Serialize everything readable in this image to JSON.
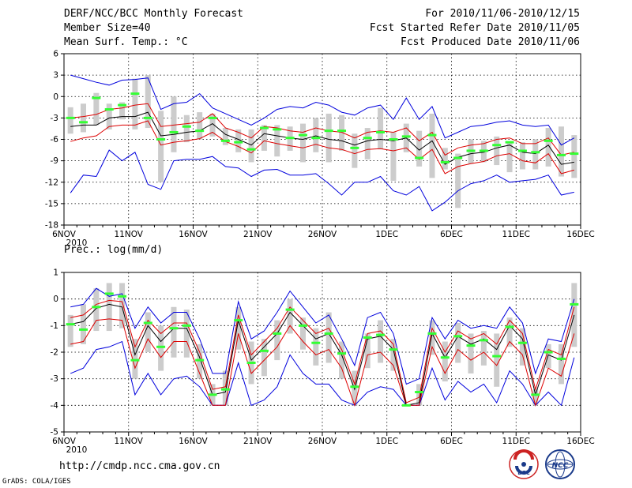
{
  "header": {
    "title": "DERF/NCC/BCC Monthly Forecast",
    "member_size": "Member Size=40",
    "variable": "Mean Surf. Temp.: °C",
    "forecast_period": "For 2010/11/06-2010/12/15",
    "fcst_started": "Fcst Started Refer Date 2010/11/05",
    "fcst_produced": "Fcst Produced Date 2010/11/06"
  },
  "footer": {
    "url": "http://cmdp.ncc.cma.gov.cn",
    "credit": "GrADS: COLA/IGES",
    "logo_bcc": "BCC",
    "logo_ncc": "NCC"
  },
  "colors": {
    "mean": "#000000",
    "spread": "#dd0000",
    "extreme": "#0000dd",
    "box": "#cccccc",
    "marker": "#33ff33"
  },
  "chart_data": [
    {
      "type": "line",
      "title": "Mean Surf. Temp.: °C",
      "x_start_date": "2010-11-06",
      "days": 40,
      "x_tick_labels": [
        "6NOV",
        "11NOV",
        "16NOV",
        "21NOV",
        "26NOV",
        "1DEC",
        "6DEC",
        "11DEC",
        "16DEC"
      ],
      "x_year_label": "2010",
      "ylim": [
        -18,
        6
      ],
      "y_ticks": [
        -18,
        -15,
        -12,
        -9,
        -6,
        -3,
        0,
        3,
        6
      ],
      "series": [
        {
          "name": "ensemble mean",
          "color": "#000000",
          "values": [
            -4.2,
            -4.0,
            -4.0,
            -3.0,
            -2.8,
            -2.8,
            -2.2,
            -5.5,
            -5.3,
            -5.0,
            -4.8,
            -3.8,
            -5.3,
            -6.0,
            -6.8,
            -5.2,
            -5.5,
            -5.8,
            -6.0,
            -5.5,
            -6.0,
            -6.2,
            -6.8,
            -6.2,
            -6.0,
            -6.2,
            -5.8,
            -7.5,
            -6.2,
            -9.5,
            -8.5,
            -8.0,
            -7.8,
            -7.2,
            -6.8,
            -7.8,
            -8.0,
            -6.8,
            -9.5,
            -9.2
          ]
        },
        {
          "name": "spread upper",
          "color": "#dd0000",
          "values": [
            -3.0,
            -2.8,
            -2.5,
            -1.8,
            -1.6,
            -1.2,
            -1.0,
            -4.2,
            -4.0,
            -3.8,
            -3.6,
            -2.4,
            -4.4,
            -5.0,
            -5.8,
            -4.2,
            -4.4,
            -4.8,
            -5.0,
            -4.4,
            -4.8,
            -5.0,
            -5.8,
            -5.0,
            -4.8,
            -5.0,
            -4.4,
            -6.2,
            -5.0,
            -8.2,
            -7.2,
            -6.8,
            -6.6,
            -6.0,
            -5.8,
            -6.6,
            -6.6,
            -5.8,
            -8.2,
            -7.8
          ]
        },
        {
          "name": "spread lower",
          "color": "#dd0000",
          "values": [
            -6.3,
            -5.8,
            -5.5,
            -4.2,
            -4.0,
            -4.0,
            -3.4,
            -6.8,
            -6.4,
            -6.2,
            -5.9,
            -5.0,
            -6.3,
            -7.0,
            -7.9,
            -6.2,
            -6.6,
            -6.9,
            -7.2,
            -6.7,
            -7.2,
            -7.4,
            -8.0,
            -7.4,
            -7.3,
            -7.6,
            -7.2,
            -8.8,
            -7.4,
            -10.8,
            -9.8,
            -9.4,
            -9.1,
            -8.3,
            -8.0,
            -9.0,
            -9.3,
            -8.0,
            -10.8,
            -10.3
          ]
        },
        {
          "name": "ensemble max",
          "color": "#0000dd",
          "values": [
            3.0,
            2.5,
            2.0,
            1.6,
            2.3,
            2.4,
            2.6,
            -1.8,
            -1.0,
            -0.8,
            0.4,
            -1.6,
            -2.4,
            -3.2,
            -4.0,
            -3.0,
            -1.8,
            -1.4,
            -1.6,
            -0.8,
            -1.2,
            -2.2,
            -2.6,
            -1.6,
            -1.2,
            -3.2,
            -0.2,
            -3.2,
            -1.4,
            -5.8,
            -5.0,
            -4.2,
            -4.0,
            -3.6,
            -3.4,
            -4.0,
            -4.2,
            -4.0,
            -6.8,
            -5.8
          ]
        },
        {
          "name": "ensemble min",
          "color": "#0000dd",
          "values": [
            -13.5,
            -11.0,
            -11.2,
            -7.5,
            -9.0,
            -7.8,
            -12.3,
            -13.0,
            -9.0,
            -8.8,
            -8.8,
            -8.4,
            -9.8,
            -10.0,
            -11.2,
            -10.3,
            -10.2,
            -11.0,
            -11.0,
            -10.8,
            -12.2,
            -13.8,
            -12.0,
            -12.0,
            -11.2,
            -13.2,
            -13.8,
            -12.6,
            -16.0,
            -14.8,
            -13.2,
            -12.2,
            -11.8,
            -11.0,
            -12.0,
            -11.8,
            -11.6,
            -11.0,
            -13.8,
            -13.4
          ]
        },
        {
          "name": "box top",
          "color": "#cccccc",
          "values": [
            -1.5,
            -1.0,
            0.5,
            -1.0,
            -0.8,
            2.5,
            3.0,
            -2.0,
            0.0,
            -2.6,
            -2.2,
            -2.4,
            -4.4,
            -4.6,
            -4.6,
            -4.0,
            -4.0,
            -4.2,
            -3.8,
            -3.0,
            -2.4,
            -2.6,
            -5.2,
            -4.4,
            -1.6,
            -5.0,
            -3.8,
            -4.8,
            -2.4,
            -7.2,
            -8.0,
            -6.0,
            -6.2,
            -5.6,
            -6.4,
            -6.4,
            -6.0,
            -4.4,
            -4.2,
            -5.4
          ]
        },
        {
          "name": "box bottom",
          "color": "#cccccc",
          "values": [
            -5.2,
            -5.0,
            -4.0,
            -4.6,
            -3.2,
            -4.6,
            -4.4,
            -12.0,
            -7.8,
            -6.4,
            -6.0,
            -5.6,
            -6.8,
            -7.8,
            -9.2,
            -7.6,
            -8.4,
            -7.6,
            -9.2,
            -7.8,
            -9.2,
            -7.6,
            -10.0,
            -8.8,
            -7.4,
            -11.8,
            -7.8,
            -9.8,
            -11.4,
            -10.2,
            -15.6,
            -9.4,
            -9.2,
            -9.6,
            -10.6,
            -10.2,
            -10.2,
            -9.8,
            -11.2,
            -11.4
          ]
        },
        {
          "name": "markers",
          "color": "#33ff33",
          "values": [
            -3.0,
            -3.6,
            -0.2,
            -1.8,
            -1.2,
            0.4,
            -3.0,
            -6.0,
            -5.0,
            -4.2,
            -4.8,
            -3.0,
            -6.2,
            -6.4,
            -7.4,
            -4.4,
            -4.6,
            -5.8,
            -5.4,
            -5.8,
            -4.8,
            -4.8,
            -7.2,
            -5.8,
            -5.0,
            -6.0,
            -5.6,
            -8.6,
            -5.4,
            -9.2,
            -8.6,
            -7.6,
            -7.6,
            -6.8,
            -6.4,
            -7.6,
            -7.8,
            -6.2,
            -8.2,
            -8.0
          ]
        }
      ]
    },
    {
      "type": "line",
      "title": "Prec.: log(mm/d)",
      "x_start_date": "2010-11-06",
      "days": 40,
      "x_tick_labels": [
        "6NOV",
        "11NOV",
        "16NOV",
        "21NOV",
        "26NOV",
        "1DEC",
        "6DEC",
        "11DEC",
        "16DEC"
      ],
      "x_year_label": "2010",
      "ylim": [
        -5,
        1
      ],
      "y_ticks": [
        -5,
        -4,
        -3,
        -2,
        -1,
        0,
        1
      ],
      "series": [
        {
          "name": "ensemble mean",
          "color": "#000000",
          "values": [
            -0.95,
            -0.85,
            -0.35,
            -0.2,
            -0.3,
            -2.1,
            -1.0,
            -1.6,
            -1.1,
            -1.1,
            -2.2,
            -3.6,
            -3.5,
            -0.8,
            -2.3,
            -1.8,
            -1.3,
            -0.5,
            -1.0,
            -1.5,
            -1.3,
            -2.1,
            -3.4,
            -1.5,
            -1.4,
            -1.9,
            -4.0,
            -3.9,
            -1.3,
            -2.2,
            -1.4,
            -1.7,
            -1.5,
            -1.9,
            -1.0,
            -1.5,
            -3.6,
            -2.1,
            -2.3,
            -0.6
          ]
        },
        {
          "name": "spread upper",
          "color": "#dd0000",
          "values": [
            -0.7,
            -0.6,
            -0.2,
            -0.05,
            -0.1,
            -1.8,
            -0.8,
            -1.3,
            -0.9,
            -0.9,
            -2.0,
            -3.4,
            -3.3,
            -0.6,
            -2.1,
            -1.6,
            -1.1,
            -0.3,
            -0.8,
            -1.3,
            -1.1,
            -1.9,
            -3.2,
            -1.3,
            -1.2,
            -1.7,
            -3.9,
            -3.7,
            -1.1,
            -2.0,
            -1.2,
            -1.5,
            -1.3,
            -1.7,
            -0.8,
            -1.3,
            -3.4,
            -1.9,
            -2.1,
            -0.3
          ]
        },
        {
          "name": "spread lower",
          "color": "#dd0000",
          "values": [
            -1.7,
            -1.6,
            -0.8,
            -0.75,
            -0.8,
            -2.6,
            -1.5,
            -2.2,
            -1.6,
            -1.6,
            -2.8,
            -4.0,
            -4.0,
            -1.3,
            -2.8,
            -2.3,
            -1.8,
            -1.0,
            -1.6,
            -2.1,
            -1.9,
            -2.6,
            -4.0,
            -2.1,
            -2.0,
            -2.5,
            -4.0,
            -4.0,
            -1.8,
            -2.8,
            -1.9,
            -2.3,
            -2.0,
            -2.5,
            -1.6,
            -2.1,
            -4.0,
            -2.6,
            -2.9,
            -1.3
          ]
        },
        {
          "name": "ensemble max",
          "color": "#0000dd",
          "values": [
            -0.3,
            -0.2,
            0.4,
            0.1,
            0.2,
            -1.1,
            -0.3,
            -0.9,
            -0.5,
            -0.5,
            -1.5,
            -2.8,
            -2.8,
            -0.1,
            -1.5,
            -1.2,
            -0.5,
            0.3,
            -0.3,
            -0.9,
            -0.6,
            -1.5,
            -2.5,
            -0.7,
            -0.5,
            -1.3,
            -3.2,
            -3.0,
            -0.7,
            -1.5,
            -0.8,
            -1.1,
            -1.0,
            -1.1,
            -0.3,
            -0.9,
            -2.8,
            -1.5,
            -1.6,
            0.0
          ]
        },
        {
          "name": "ensemble min",
          "color": "#0000dd",
          "values": [
            -2.8,
            -2.6,
            -1.9,
            -1.8,
            -1.6,
            -3.6,
            -2.8,
            -3.6,
            -3.0,
            -2.9,
            -3.3,
            -4.0,
            -4.0,
            -2.4,
            -4.0,
            -3.8,
            -3.3,
            -2.1,
            -2.8,
            -3.2,
            -3.2,
            -3.8,
            -4.0,
            -3.5,
            -3.3,
            -3.4,
            -4.0,
            -4.0,
            -2.6,
            -3.8,
            -3.1,
            -3.5,
            -3.2,
            -3.9,
            -2.7,
            -3.2,
            -4.0,
            -3.5,
            -4.0,
            -2.2
          ]
        },
        {
          "name": "box top",
          "color": "#cccccc",
          "values": [
            -0.6,
            -0.2,
            0.4,
            0.6,
            0.6,
            -1.5,
            -0.5,
            -1.0,
            -0.3,
            -0.4,
            -1.7,
            -3.2,
            -2.7,
            -0.3,
            -1.6,
            -1.5,
            -0.8,
            0.0,
            -0.7,
            -1.1,
            -0.5,
            -1.6,
            -2.7,
            -1.3,
            -0.8,
            -1.5,
            -4.0,
            -3.2,
            -0.8,
            -1.6,
            -0.9,
            -1.3,
            -1.2,
            -1.3,
            -0.7,
            -1.1,
            -3.4,
            -1.7,
            -1.7,
            0.6
          ]
        },
        {
          "name": "box bottom",
          "color": "#cccccc",
          "values": [
            -1.8,
            -1.7,
            -1.2,
            -1.2,
            -1.1,
            -3.0,
            -2.0,
            -2.7,
            -2.2,
            -2.2,
            -3.0,
            -4.0,
            -4.0,
            -1.9,
            -3.2,
            -2.9,
            -2.3,
            -1.3,
            -1.9,
            -2.5,
            -2.4,
            -3.0,
            -4.0,
            -2.6,
            -2.4,
            -2.7,
            -4.0,
            -4.0,
            -2.1,
            -3.1,
            -2.4,
            -2.8,
            -2.5,
            -3.3,
            -1.8,
            -2.5,
            -4.0,
            -2.6,
            -3.2,
            -1.8
          ]
        },
        {
          "name": "markers",
          "color": "#33ff33",
          "values": [
            -0.95,
            -1.15,
            -0.3,
            0.2,
            0.1,
            -2.3,
            -0.9,
            -1.8,
            -1.1,
            -1.0,
            -2.3,
            -3.6,
            -3.4,
            -0.8,
            -2.4,
            -1.95,
            -1.3,
            -0.4,
            -1.0,
            -1.65,
            -1.3,
            -2.05,
            -3.3,
            -1.45,
            -1.35,
            -1.9,
            -4.0,
            -3.5,
            -1.3,
            -2.2,
            -1.4,
            -1.75,
            -1.55,
            -2.15,
            -1.05,
            -1.65,
            -3.6,
            -2.0,
            -2.25,
            -0.2
          ]
        }
      ]
    }
  ]
}
